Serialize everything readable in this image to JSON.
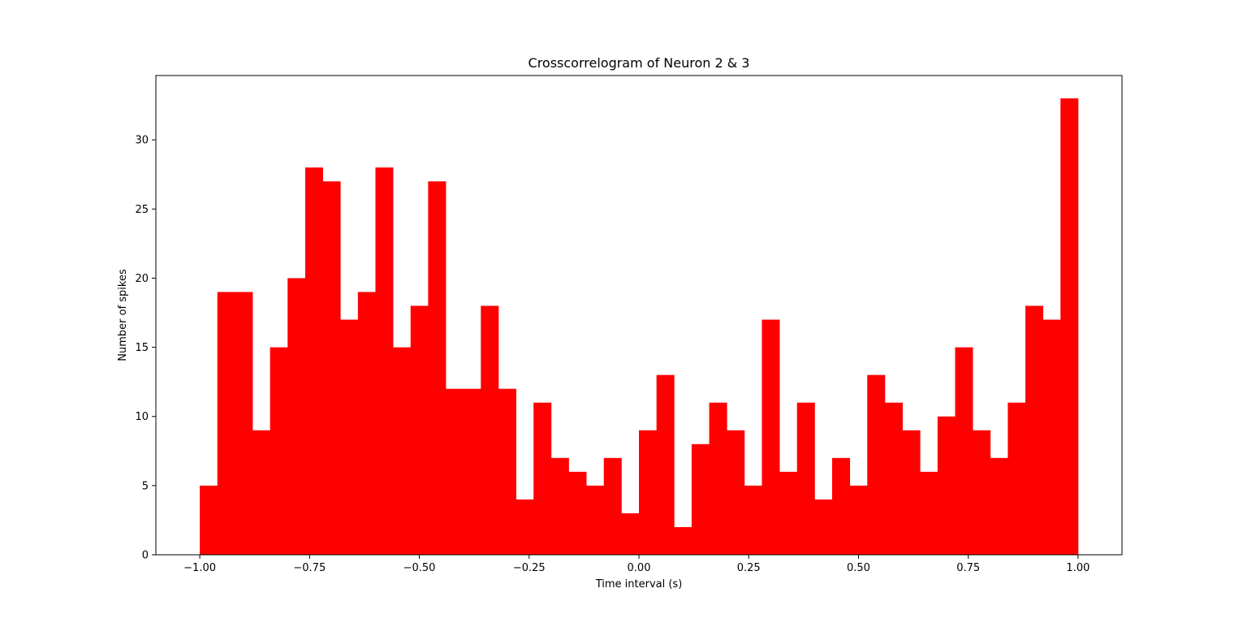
{
  "chart_data": {
    "type": "bar",
    "title": "Crosscorrelogram of Neuron 2 & 3",
    "xlabel": "Time interval (s)",
    "ylabel": "Number of spikes",
    "xlim": [
      -1.1,
      1.1
    ],
    "ylim": [
      0,
      34.65
    ],
    "xticks": [
      -1.0,
      -0.75,
      -0.5,
      -0.25,
      0.0,
      0.25,
      0.5,
      0.75,
      1.0
    ],
    "xtick_labels": [
      "−1.00",
      "−0.75",
      "−0.50",
      "−0.25",
      "0.00",
      "0.25",
      "0.50",
      "0.75",
      "1.00"
    ],
    "yticks": [
      0,
      5,
      10,
      15,
      20,
      25,
      30
    ],
    "ytick_labels": [
      "0",
      "5",
      "10",
      "15",
      "20",
      "25",
      "30"
    ],
    "bins": {
      "start": -1.0,
      "end": 1.0,
      "count": 50
    },
    "values": [
      5,
      19,
      19,
      9,
      15,
      20,
      28,
      27,
      17,
      19,
      28,
      15,
      18,
      27,
      12,
      12,
      18,
      12,
      4,
      11,
      7,
      6,
      5,
      7,
      3,
      9,
      13,
      2,
      8,
      11,
      9,
      5,
      17,
      6,
      11,
      4,
      7,
      5,
      13,
      11,
      9,
      6,
      10,
      15,
      9,
      7,
      11,
      18,
      17,
      33
    ],
    "bar_color": "#ff0000",
    "grid": false,
    "legend": "none"
  }
}
